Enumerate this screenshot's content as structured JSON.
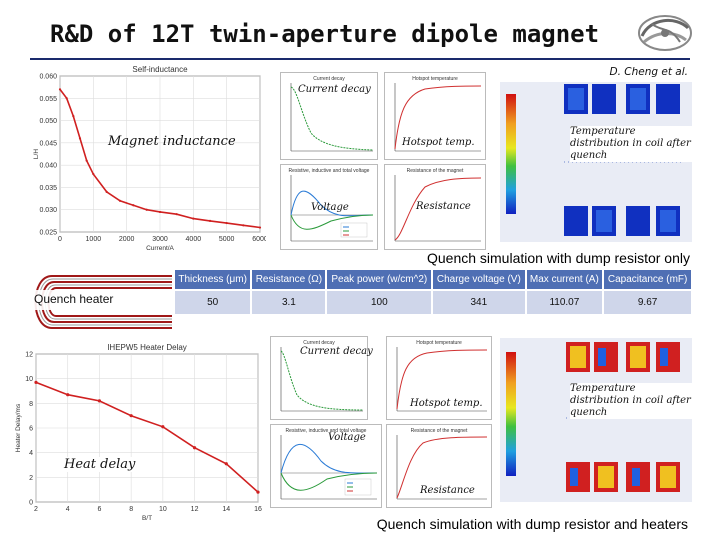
{
  "slide": {
    "title": "R&D of 12T twin-aperture dipole magnet",
    "author": "D. Cheng et al."
  },
  "upper": {
    "labels": {
      "current_decay": "Current decay",
      "magnet_inductance": "Magnet inductance",
      "hotspot": "Hotspot temp.",
      "voltage": "Voltage",
      "resistance": "Resistance",
      "temp_dist": "Temperature distribution in coil after quench"
    },
    "caption": "Quench simulation with dump resistor only"
  },
  "inductance_chart": {
    "title": "Self-inductance",
    "xlabel": "Current/A",
    "ylabel": "L/H",
    "yticks": [
      "0.060",
      "0.055",
      "0.050",
      "0.045",
      "0.040",
      "0.035",
      "0.030",
      "0.025"
    ],
    "xticks": [
      "0",
      "1000",
      "2000",
      "3000",
      "4000",
      "5000",
      "6000"
    ]
  },
  "upper_small_plots": {
    "current_title": "Current decay",
    "hotspot_title": "Hotspot temperature",
    "voltage_title": "Resistive, inductive and total voltage",
    "resistance_title": "Resistance of the magnet"
  },
  "table": {
    "headers": [
      "Thickness (μm)",
      "Resistance (Ω)",
      "Peak power (w/cm^2)",
      "Charge voltage (V)",
      "Max current (A)",
      "Capacitance (mF)"
    ],
    "row": [
      "50",
      "3.1",
      "100",
      "341",
      "110.07",
      "9.67"
    ]
  },
  "quench_heater_label": "Quench heater",
  "lower": {
    "labels": {
      "current_decay": "Current decay",
      "hotspot": "Hotspot temp.",
      "voltage": "Voltage",
      "heat_delay": "Heat delay",
      "resistance": "Resistance",
      "temp_dist": "Temperature distribution in coil after quench"
    },
    "caption": "Quench simulation with dump resistor and heaters"
  },
  "heater_delay_chart": {
    "title": "IHEPW5 Heater Delay",
    "xlabel": "B/T",
    "ylabel": "Heater Delay/ms",
    "yticks": [
      "12",
      "10",
      "8",
      "6",
      "4",
      "2",
      "0"
    ],
    "xticks": [
      "2",
      "4",
      "6",
      "8",
      "10",
      "12",
      "14",
      "16"
    ]
  },
  "lower_small_plots": {
    "current_title": "Current decay",
    "hotspot_title": "Hotspot temperature",
    "voltage_title": "Resistive, inductive and total voltage",
    "resistance_title": "Resistance of the magnet"
  },
  "chart_data": [
    {
      "type": "line",
      "title": "Self-inductance",
      "xlabel": "Current/A",
      "ylabel": "L/H",
      "xlim": [
        0,
        6000
      ],
      "ylim": [
        0.025,
        0.06
      ],
      "x": [
        0,
        200,
        400,
        600,
        800,
        1000,
        1400,
        1800,
        2200,
        2600,
        3000,
        3500,
        4000,
        4500,
        5000,
        5500,
        6000
      ],
      "series": [
        {
          "values": [
            0.057,
            0.055,
            0.051,
            0.046,
            0.041,
            0.038,
            0.034,
            0.032,
            0.031,
            0.03,
            0.0295,
            0.029,
            0.028,
            0.0275,
            0.027,
            0.0265,
            0.026
          ]
        }
      ]
    },
    {
      "type": "line",
      "title": "IHEPW5 Heater Delay",
      "xlabel": "B/T",
      "ylabel": "Heater Delay/ms",
      "xlim": [
        2,
        16
      ],
      "ylim": [
        0,
        12
      ],
      "x": [
        2,
        4,
        6,
        8,
        10,
        12,
        14,
        16
      ],
      "series": [
        {
          "values": [
            9.7,
            8.7,
            8.2,
            7.0,
            6.1,
            4.4,
            3.1,
            0.8
          ]
        }
      ]
    }
  ]
}
